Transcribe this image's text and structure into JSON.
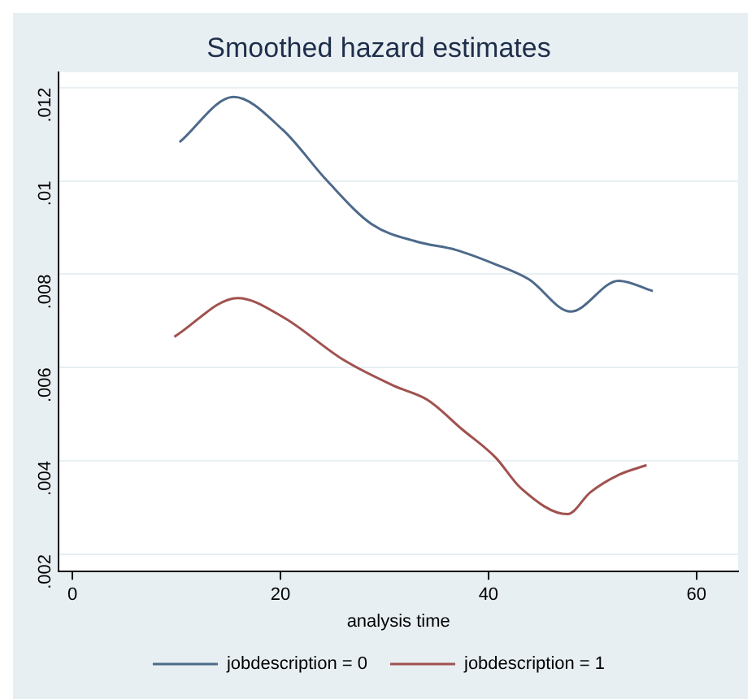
{
  "chart_data": {
    "type": "line",
    "title": "Smoothed hazard estimates",
    "xlabel": "analysis time",
    "xlim": [
      -1.3,
      64
    ],
    "xticks": [
      0,
      20,
      40,
      60
    ],
    "ylim": [
      0.00163,
      0.01233
    ],
    "yticks": [
      {
        "value": 0.002,
        "label": ".002"
      },
      {
        "value": 0.004,
        "label": ".004"
      },
      {
        "value": 0.006,
        "label": ".006"
      },
      {
        "value": 0.008,
        "label": ".008"
      },
      {
        "value": 0.01,
        "label": ".01"
      },
      {
        "value": 0.012,
        "label": ".012"
      }
    ],
    "grid": "y",
    "legend": "bottom",
    "marker": "none",
    "line_style": "solid",
    "series": [
      {
        "name": "jobdescription = 0",
        "color": "#4e6a8a",
        "x": [
          10.3,
          15.5,
          20.2,
          24.5,
          28.8,
          33.1,
          36.9,
          40.6,
          43.9,
          47.9,
          52.5,
          55.8
        ],
        "values": [
          0.01083,
          0.0118,
          0.0111,
          0.01,
          0.00907,
          0.0087,
          0.00852,
          0.00822,
          0.00789,
          0.0072,
          0.00786,
          0.00764
        ]
      },
      {
        "name": "jobdescription = 1",
        "color": "#a0524f",
        "x": [
          9.8,
          15.9,
          20.2,
          26.1,
          30.9,
          34.2,
          37.4,
          40.7,
          43.1,
          47.6,
          49.8,
          52.5,
          55.2
        ],
        "values": [
          0.00666,
          0.00749,
          0.00709,
          0.00616,
          0.00561,
          0.0053,
          0.00469,
          0.00407,
          0.00342,
          0.00286,
          0.00333,
          0.0037,
          0.00391
        ]
      }
    ]
  }
}
